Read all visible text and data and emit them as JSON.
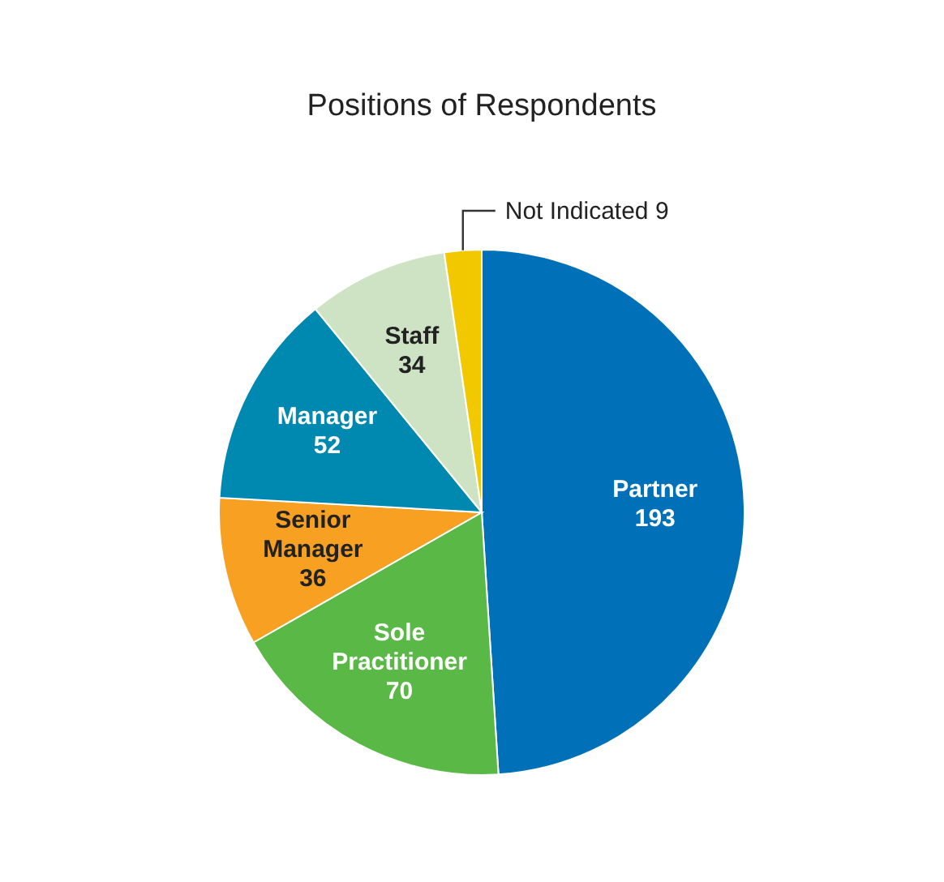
{
  "chart_data": {
    "type": "pie",
    "title": "Positions of Respondents",
    "categories": [
      "Partner",
      "Sole Practitioner",
      "Senior Manager",
      "Manager",
      "Staff",
      "Not Indicated"
    ],
    "values": [
      193,
      70,
      36,
      52,
      34,
      9
    ],
    "colors": [
      "#0070b8",
      "#5ab946",
      "#f7a021",
      "#0089b0",
      "#cde3c3",
      "#f2c900"
    ],
    "data_labels": true
  }
}
